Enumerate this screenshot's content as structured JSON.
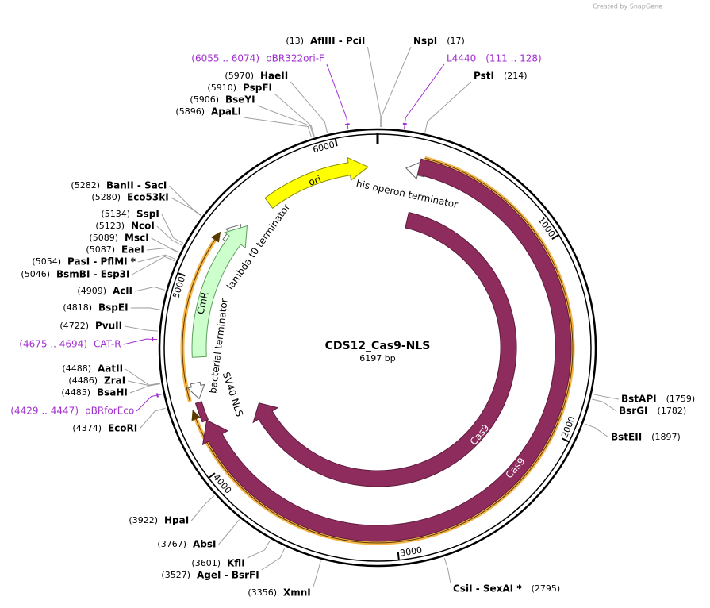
{
  "credit": "Created by SnapGene",
  "map": {
    "name": "CDS12_Cas9-NLS",
    "length": "6197 bp",
    "ruler": [
      "1000",
      "2000",
      "3000",
      "4000",
      "5000",
      "6000"
    ]
  },
  "features": [
    {
      "label": "ori"
    },
    {
      "label": "his operon terminator"
    },
    {
      "label": "lambda t0 terminator"
    },
    {
      "label": "CmR"
    },
    {
      "label": "bacterial terminator"
    },
    {
      "label": "SV40 NLS"
    },
    {
      "label": "Cas9"
    },
    {
      "label": "Cas9"
    }
  ],
  "primers": [
    {
      "name": "pBR322ori-F",
      "range": "(6055 .. 6074)"
    },
    {
      "name": "L4440",
      "range": "(111 .. 128)"
    },
    {
      "name": "CAT-R",
      "range": "(4675 .. 4694)"
    },
    {
      "name": "pBRforEco",
      "range": "(4429 .. 4447)"
    }
  ],
  "enzymes": [
    {
      "name": "AflIII  - PciI",
      "site": "(13)"
    },
    {
      "name": "NspI",
      "site": "(17)"
    },
    {
      "name": "PstI",
      "site": "(214)"
    },
    {
      "name": "HaeII",
      "site": "(5970)"
    },
    {
      "name": "PspFI",
      "site": "(5910)"
    },
    {
      "name": "BseYI",
      "site": "(5906)"
    },
    {
      "name": "ApaLI",
      "site": "(5896)"
    },
    {
      "name": "BanII  - SacI",
      "site": "(5282)"
    },
    {
      "name": "Eco53kI",
      "site": "(5280)"
    },
    {
      "name": "SspI",
      "site": "(5134)"
    },
    {
      "name": "NcoI",
      "site": "(5123)"
    },
    {
      "name": "MscI",
      "site": "(5089)"
    },
    {
      "name": "EaeI",
      "site": "(5087)"
    },
    {
      "name": "PasI  - PflMI *",
      "site": "(5054)"
    },
    {
      "name": "BsmBI  - Esp3I",
      "site": "(5046)"
    },
    {
      "name": "AclI",
      "site": "(4909)"
    },
    {
      "name": "BspEI",
      "site": "(4818)"
    },
    {
      "name": "PvuII",
      "site": "(4722)"
    },
    {
      "name": "AatII",
      "site": "(4488)"
    },
    {
      "name": "ZraI",
      "site": "(4486)"
    },
    {
      "name": "BsaHI",
      "site": "(4485)"
    },
    {
      "name": "EcoRI",
      "site": "(4374)"
    },
    {
      "name": "HpaI",
      "site": "(3922)"
    },
    {
      "name": "AbsI",
      "site": "(3767)"
    },
    {
      "name": "KflI",
      "site": "(3601)"
    },
    {
      "name": "AgeI  - BsrFI",
      "site": "(3527)"
    },
    {
      "name": "XmnI",
      "site": "(3356)"
    },
    {
      "name": "CsiI  - SexAI *",
      "site": "(2795)"
    },
    {
      "name": "BstAPI",
      "site": "(1759)"
    },
    {
      "name": "BsrGI",
      "site": "(1782)"
    },
    {
      "name": "BstEII",
      "site": "(1897)"
    }
  ]
}
